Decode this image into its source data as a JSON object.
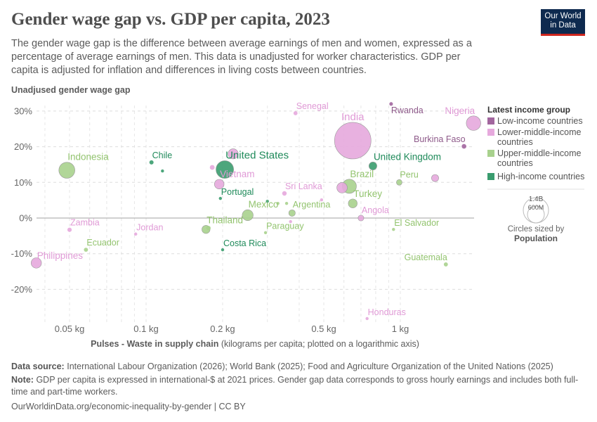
{
  "title": "Gender wage gap vs. GDP per capita, 2023",
  "subtitle": "The gender wage gap is the difference between average earnings of men and women, expressed as a percentage of average earnings of men. This data is unadjusted for worker characteristics. GDP per capita is adjusted for inflation and differences in living costs between countries.",
  "logo": {
    "line1": "Our World",
    "line2": "in Data"
  },
  "footer": {
    "source_label": "Data source:",
    "source": "International Labour Organization (2026); World Bank (2025); Food and Agriculture Organization of the United Nations (2025)",
    "note_label": "Note:",
    "note": "GDP per capita is expressed in international-$ at 2021 prices. Gender gap data corresponds to gross hourly earnings and includes both full-time and part-time workers.",
    "url": "OurWorldinData.org/economic-inequality-by-gender | CC BY"
  },
  "chart_data": {
    "type": "scatter",
    "title": "Gender wage gap vs. GDP per capita, 2023",
    "ylabel": "Unadjused gender wage gap",
    "xlabel_bold": "Pulses - Waste in supply chain",
    "xlabel_rest": " (kilograms per capita; plotted on a logarithmic axis)",
    "x_scale": "log",
    "xlim": [
      0.037,
      1.95
    ],
    "ylim": [
      -28.6,
      31
    ],
    "x_ticks": [
      {
        "v": 0.05,
        "label": "0.05 kg"
      },
      {
        "v": 0.1,
        "label": "0.1 kg"
      },
      {
        "v": 0.2,
        "label": "0.2 kg"
      },
      {
        "v": 0.5,
        "label": "0.5 kg"
      },
      {
        "v": 1,
        "label": "1 kg"
      }
    ],
    "y_ticks": [
      {
        "v": 30,
        "label": "30%"
      },
      {
        "v": 20,
        "label": "20%"
      },
      {
        "v": 10,
        "label": "10%"
      },
      {
        "v": 0,
        "label": "0%"
      },
      {
        "v": -10,
        "label": "-10%"
      },
      {
        "v": -20,
        "label": "-20%"
      }
    ],
    "grid": true,
    "legend": {
      "title": "Latest income group",
      "placement": "right",
      "items": [
        {
          "group": "low",
          "label": "Low-income countries",
          "color": "#a2669e"
        },
        {
          "group": "lower",
          "label": "Lower-middle-income countries",
          "color": "#e6a9dd"
        },
        {
          "group": "upper",
          "label": "Upper-middle-income countries",
          "color": "#a8d18d"
        },
        {
          "group": "high",
          "label": "High-income countries",
          "color": "#3a9c6e"
        }
      ]
    },
    "label_colors": {
      "low": "#8e5a8a",
      "lower": "#e09ad6",
      "upper": "#93c46f",
      "high": "#1f8a5a"
    },
    "size_legend": {
      "big": "1.4B",
      "small": "600M",
      "caption": "Circles sized by",
      "variable": "Population"
    },
    "points": [
      {
        "name": "Indonesia",
        "x": 0.0488,
        "y": 13.4,
        "group": "upper",
        "pop": 275
      },
      {
        "name": "Chile",
        "x": 0.105,
        "y": 15.6,
        "group": "high",
        "pop": 19
      },
      {
        "name": "",
        "x": 0.116,
        "y": 13.2,
        "group": "high",
        "pop": 10
      },
      {
        "name": "",
        "x": 0.182,
        "y": 14.2,
        "group": "lower",
        "pop": 25
      },
      {
        "name": "United States",
        "x": 0.204,
        "y": 13.6,
        "group": "high",
        "pop": 335
      },
      {
        "name": "",
        "x": 0.22,
        "y": 18.0,
        "group": "lower",
        "pop": 110
      },
      {
        "name": "Vietnam",
        "x": 0.194,
        "y": 9.5,
        "group": "lower",
        "pop": 99
      },
      {
        "name": "Portugal",
        "x": 0.196,
        "y": 5.5,
        "group": "high",
        "pop": 10
      },
      {
        "name": "Mexico",
        "x": 0.251,
        "y": 0.8,
        "group": "upper",
        "pop": 128
      },
      {
        "name": "Thailand",
        "x": 0.172,
        "y": -3.2,
        "group": "upper",
        "pop": 71
      },
      {
        "name": "",
        "x": 0.176,
        "y": -2.8,
        "group": "upper",
        "pop": 20
      },
      {
        "name": "Zambia",
        "x": 0.05,
        "y": -3.3,
        "group": "lower",
        "pop": 20
      },
      {
        "name": "Jordan",
        "x": 0.091,
        "y": -4.5,
        "group": "lower",
        "pop": 11
      },
      {
        "name": "Ecuador",
        "x": 0.058,
        "y": -8.9,
        "group": "upper",
        "pop": 18
      },
      {
        "name": "Philippines",
        "x": 0.037,
        "y": -12.6,
        "group": "lower",
        "pop": 115
      },
      {
        "name": "Costa Rica",
        "x": 0.2,
        "y": -8.9,
        "group": "high",
        "pop": 5
      },
      {
        "name": "Paraguay",
        "x": 0.295,
        "y": -4.1,
        "group": "upper",
        "pop": 7
      },
      {
        "name": "",
        "x": 0.37,
        "y": -1.0,
        "group": "lower",
        "pop": 8
      },
      {
        "name": "Argentina",
        "x": 0.375,
        "y": 1.4,
        "group": "upper",
        "pop": 46
      },
      {
        "name": "",
        "x": 0.3,
        "y": 4.7,
        "group": "high",
        "pop": 5
      },
      {
        "name": "",
        "x": 0.33,
        "y": 4.1,
        "group": "upper",
        "pop": 10
      },
      {
        "name": "",
        "x": 0.357,
        "y": 4.1,
        "group": "upper",
        "pop": 10
      },
      {
        "name": "",
        "x": 0.49,
        "y": 5.1,
        "group": "lower",
        "pop": 8
      },
      {
        "name": "Sri Lanka",
        "x": 0.35,
        "y": 6.9,
        "group": "lower",
        "pop": 22
      },
      {
        "name": "Senegal",
        "x": 0.387,
        "y": 29.4,
        "group": "lower",
        "pop": 18
      },
      {
        "name": "India",
        "x": 0.65,
        "y": 21.7,
        "group": "lower",
        "pop": 1430
      },
      {
        "name": "Rwanda",
        "x": 0.92,
        "y": 32.0,
        "group": "low",
        "pop": 14
      },
      {
        "name": "Nigeria",
        "x": 1.94,
        "y": 26.6,
        "group": "lower",
        "pop": 224
      },
      {
        "name": "Burkina Faso",
        "x": 1.78,
        "y": 20.1,
        "group": "low",
        "pop": 23
      },
      {
        "name": "United Kingdom",
        "x": 0.78,
        "y": 14.6,
        "group": "high",
        "pop": 68
      },
      {
        "name": "Peru",
        "x": 0.99,
        "y": 10.0,
        "group": "upper",
        "pop": 34
      },
      {
        "name": "",
        "x": 1.37,
        "y": 11.2,
        "group": "lower",
        "pop": 55
      },
      {
        "name": "Brazil",
        "x": 0.63,
        "y": 8.9,
        "group": "upper",
        "pop": 216
      },
      {
        "name": "",
        "x": 0.59,
        "y": 8.5,
        "group": "lower",
        "pop": 117
      },
      {
        "name": "Turkey",
        "x": 0.65,
        "y": 4.1,
        "group": "upper",
        "pop": 85
      },
      {
        "name": "Angola",
        "x": 0.7,
        "y": 0.0,
        "group": "lower",
        "pop": 36
      },
      {
        "name": "El Salvador",
        "x": 0.94,
        "y": -3.2,
        "group": "upper",
        "pop": 6
      },
      {
        "name": "Guatemala",
        "x": 1.51,
        "y": -13.0,
        "group": "upper",
        "pop": 18
      },
      {
        "name": "Honduras",
        "x": 0.74,
        "y": -28.2,
        "group": "lower",
        "pop": 10
      }
    ]
  }
}
